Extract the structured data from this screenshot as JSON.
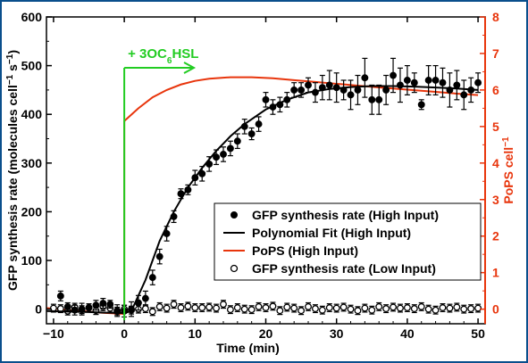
{
  "chart_data": {
    "type": "scatter",
    "title": "",
    "xlabel": "Time (min)",
    "ylabel_left_parts": [
      "GFP synthesis rate (molecules cell",
      "−1",
      " s",
      "−1",
      ")"
    ],
    "ylabel_right_parts": [
      "PoPS cell",
      "−1"
    ],
    "xlim": [
      -11,
      51
    ],
    "ylim_left": [
      -30,
      600
    ],
    "ylim_right": [
      -0.4,
      8
    ],
    "xticks": [
      -10,
      0,
      10,
      20,
      30,
      40,
      50
    ],
    "xtick_labels": [
      "−10",
      "0",
      "10",
      "20",
      "30",
      "40",
      "50"
    ],
    "yticks_left": [
      0,
      100,
      200,
      300,
      400,
      500,
      600
    ],
    "yticks_right": [
      0,
      1,
      2,
      3,
      4,
      5,
      6,
      7,
      8
    ],
    "colors": {
      "left_axis": "#000000",
      "right_axis": "#e8350c",
      "annotation": "#22cc22",
      "frame": "#0a4f8c"
    },
    "annotation": {
      "parts": [
        "+ 3OC",
        "6",
        "HSL"
      ],
      "x": 0
    },
    "legend": {
      "position": "lower-right",
      "entries": [
        {
          "label": "GFP synthesis rate (High Input)",
          "marker": "filled-circle"
        },
        {
          "label": "Polynomial Fit (High Input)",
          "marker": "black-line"
        },
        {
          "label": "PoPS (High Input)",
          "marker": "red-line"
        },
        {
          "label": "GFP synthesis rate (Low Input)",
          "marker": "open-circle"
        }
      ]
    },
    "series": [
      {
        "name": "GFP synthesis rate (High Input)",
        "axis": "left",
        "x": [
          -9,
          -8,
          -7,
          -6,
          -5,
          -4,
          -3,
          -2,
          -1,
          0,
          1,
          2,
          3,
          4,
          5,
          6,
          7,
          8,
          9,
          10,
          11,
          12,
          13,
          14,
          15,
          16,
          17,
          18,
          19,
          20,
          21,
          22,
          23,
          24,
          25,
          26,
          27,
          28,
          29,
          30,
          31,
          32,
          33,
          34,
          35,
          36,
          37,
          38,
          39,
          40,
          41,
          42,
          43,
          44,
          45,
          46,
          47,
          48,
          49,
          50
        ],
        "y": [
          27,
          5,
          -2,
          0,
          3,
          8,
          12,
          10,
          -3,
          -4,
          0,
          13,
          22,
          65,
          108,
          155,
          190,
          237,
          245,
          270,
          278,
          298,
          312,
          318,
          330,
          345,
          375,
          360,
          380,
          430,
          415,
          420,
          430,
          450,
          450,
          460,
          445,
          455,
          460,
          455,
          450,
          440,
          450,
          475,
          430,
          430,
          450,
          480,
          460,
          470,
          465,
          420,
          470,
          470,
          465,
          450,
          460,
          440,
          450,
          465
        ],
        "err": [
          10,
          8,
          10,
          12,
          8,
          10,
          10,
          8,
          12,
          12,
          15,
          15,
          15,
          15,
          15,
          15,
          12,
          10,
          10,
          15,
          15,
          15,
          15,
          15,
          15,
          15,
          15,
          12,
          15,
          15,
          15,
          15,
          15,
          15,
          15,
          15,
          20,
          25,
          30,
          30,
          20,
          30,
          30,
          40,
          30,
          30,
          30,
          35,
          35,
          30,
          20,
          10,
          30,
          30,
          30,
          35,
          30,
          30,
          25,
          20
        ]
      },
      {
        "name": "GFP synthesis rate (Low Input)",
        "axis": "left",
        "x": [
          -10,
          -9,
          -8,
          -7,
          -6,
          -5,
          -4,
          -3,
          -2,
          -1,
          0,
          1,
          2,
          3,
          4,
          5,
          6,
          7,
          8,
          9,
          10,
          11,
          12,
          13,
          14,
          15,
          16,
          17,
          18,
          19,
          20,
          21,
          22,
          23,
          24,
          25,
          26,
          27,
          28,
          29,
          30,
          31,
          32,
          33,
          34,
          35,
          36,
          37,
          38,
          39,
          40,
          41,
          42,
          43,
          44,
          45,
          46,
          47,
          48,
          49,
          50
        ],
        "y": [
          2,
          1,
          -4,
          4,
          -1,
          3,
          -3,
          5,
          2,
          -4,
          0,
          -2,
          0,
          1,
          -5,
          5,
          2,
          10,
          3,
          6,
          3,
          3,
          4,
          2,
          10,
          -1,
          3,
          0,
          -1,
          5,
          3,
          6,
          -3,
          4,
          2,
          -3,
          5,
          1,
          -2,
          3,
          2,
          4,
          0,
          -3,
          2,
          -2,
          5,
          1,
          4,
          2,
          3,
          1,
          5,
          0,
          -2,
          3,
          2,
          4,
          0,
          1,
          2
        ],
        "err": [
          8,
          8,
          8,
          8,
          8,
          8,
          8,
          8,
          8,
          8,
          8,
          8,
          8,
          8,
          8,
          8,
          8,
          8,
          8,
          8,
          8,
          8,
          8,
          8,
          8,
          8,
          8,
          8,
          8,
          8,
          8,
          8,
          8,
          8,
          8,
          8,
          8,
          8,
          8,
          8,
          8,
          8,
          8,
          8,
          8,
          8,
          8,
          8,
          8,
          8,
          8,
          8,
          8,
          8,
          8,
          8,
          8,
          8,
          8,
          8,
          8
        ]
      },
      {
        "name": "Polynomial Fit (High Input)",
        "axis": "left",
        "x": [
          -11,
          -8,
          -5,
          -3,
          0,
          1,
          3,
          5,
          7,
          9,
          11,
          13,
          15,
          17,
          20,
          23,
          26,
          29,
          32,
          35,
          38,
          41,
          44,
          47,
          50
        ],
        "y": [
          -4,
          -5,
          -6,
          -7,
          -8,
          -4,
          60,
          140,
          200,
          250,
          290,
          325,
          355,
          380,
          410,
          430,
          445,
          452,
          456,
          458,
          458,
          457,
          455,
          453,
          450
        ]
      },
      {
        "name": "PoPS (High Input)",
        "axis": "right",
        "x": [
          -11,
          -8,
          -5,
          -3,
          0,
          0.001,
          2,
          4,
          6,
          8,
          10,
          12,
          15,
          18,
          21,
          24,
          27,
          30,
          33,
          36,
          40,
          44,
          47,
          50
        ],
        "y": [
          0.03,
          -0.02,
          -0.07,
          -0.1,
          -0.13,
          5.15,
          5.5,
          5.8,
          6.0,
          6.15,
          6.25,
          6.31,
          6.35,
          6.35,
          6.32,
          6.27,
          6.22,
          6.17,
          6.12,
          6.07,
          6.01,
          5.95,
          5.9,
          5.86
        ]
      }
    ]
  }
}
